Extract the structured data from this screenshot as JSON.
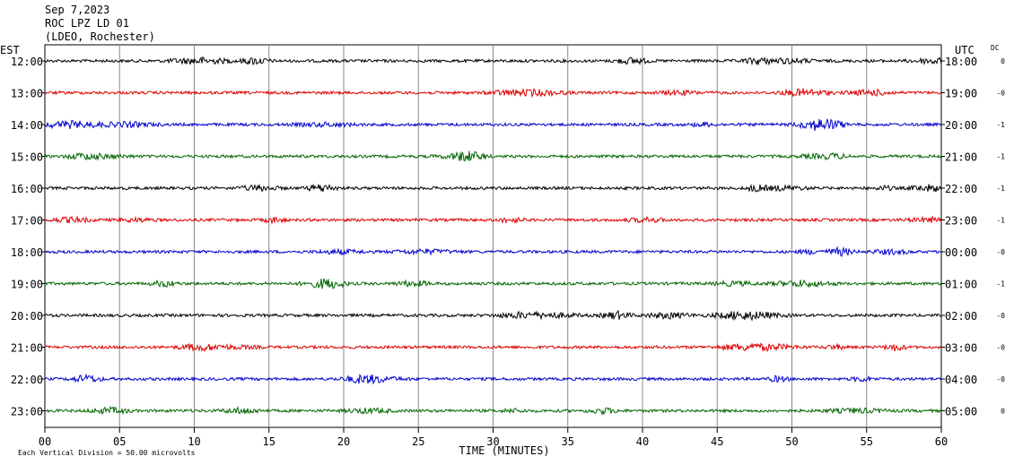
{
  "header": {
    "date": "Sep 7,2023",
    "station": "ROC LPZ LD 01",
    "network": "(LDEO, Rochester)"
  },
  "labels": {
    "left_zone": "EST",
    "right_zone": "UTC",
    "dc": "DC",
    "x_axis": "TIME (MINUTES)",
    "scale_note": "Each Vertical Division =   50.00 microvolts"
  },
  "chart_data": {
    "type": "line",
    "title": "",
    "xlabel": "TIME (MINUTES)",
    "ylabel": "",
    "x_range": [
      0,
      60
    ],
    "x_ticks": [
      "00",
      "05",
      "10",
      "15",
      "20",
      "25",
      "30",
      "35",
      "40",
      "45",
      "50",
      "55",
      "60"
    ],
    "vertical_gridlines_every_minutes": 5,
    "trace_colors": [
      "#000000",
      "#dd0000",
      "#0000cc",
      "#006600"
    ],
    "rows": [
      {
        "est": "12:00",
        "utc": "18:00",
        "dc": "0"
      },
      {
        "est": "13:00",
        "utc": "19:00",
        "dc": "-0"
      },
      {
        "est": "14:00",
        "utc": "20:00",
        "dc": "-1"
      },
      {
        "est": "15:00",
        "utc": "21:00",
        "dc": "-1"
      },
      {
        "est": "16:00",
        "utc": "22:00",
        "dc": "-1"
      },
      {
        "est": "17:00",
        "utc": "23:00",
        "dc": "-1"
      },
      {
        "est": "18:00",
        "utc": "00:00",
        "dc": "-0"
      },
      {
        "est": "19:00",
        "utc": "01:00",
        "dc": "-1"
      },
      {
        "est": "20:00",
        "utc": "02:00",
        "dc": "-0"
      },
      {
        "est": "21:00",
        "utc": "03:00",
        "dc": "-0"
      },
      {
        "est": "22:00",
        "utc": "04:00",
        "dc": "-0"
      },
      {
        "est": "23:00",
        "utc": "05:00",
        "dc": "0"
      }
    ]
  }
}
